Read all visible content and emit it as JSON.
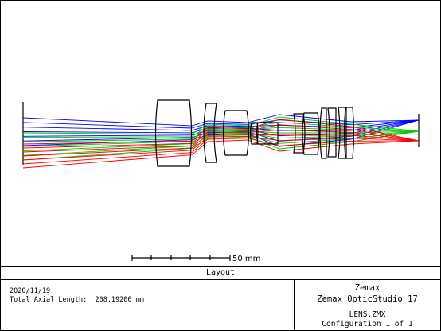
{
  "plot_title": "Layout",
  "scale_bar_label": "50 mm",
  "footer": {
    "date": "2020/11/19",
    "total_axial_length": "Total Axial Length:  208.19200 mm",
    "company": "Zemax",
    "product": "Zemax OpticStudio 17",
    "file_name": "LENS.ZMX",
    "configuration": "Configuration 1 of 1"
  },
  "ray_colors": {
    "field_1": "#0000ff",
    "field_2": "#00cc00",
    "field_3": "#ff0000"
  },
  "lens_outline_color": "#000000"
}
